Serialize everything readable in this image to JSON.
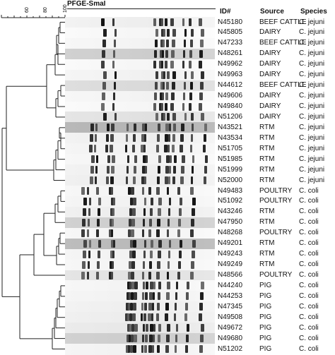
{
  "gel_title": "PFGE-SmaI",
  "scale_ticks": [
    "60",
    "80",
    "100"
  ],
  "headers": {
    "id": "ID#",
    "source": "Source",
    "species": "Species"
  },
  "rows": [
    {
      "id": "N45180",
      "source": "BEEF CATTLE",
      "species": "C. jejuni"
    },
    {
      "id": "N45805",
      "source": "DAIRY",
      "species": "C. jejuni"
    },
    {
      "id": "N47233",
      "source": "BEEF CATTLE",
      "species": "C. jejuni"
    },
    {
      "id": "N48261",
      "source": "DAIRY",
      "species": "C. jejuni"
    },
    {
      "id": "N49962",
      "source": "DAIRY",
      "species": "C. jejuni"
    },
    {
      "id": "N49963",
      "source": "DAIRY",
      "species": "C. jejuni"
    },
    {
      "id": "N44612",
      "source": "BEEF CATTLE",
      "species": "C. jejuni"
    },
    {
      "id": "N49606",
      "source": "DAIRY",
      "species": "C. jejuni"
    },
    {
      "id": "N49840",
      "source": "DAIRY",
      "species": "C. jejuni"
    },
    {
      "id": "N51206",
      "source": "DAIRY",
      "species": "C. jejuni"
    },
    {
      "id": "N43521",
      "source": "RTM",
      "species": "C. jejuni"
    },
    {
      "id": "N43534",
      "source": "RTM",
      "species": "C. jejuni"
    },
    {
      "id": "N51705",
      "source": "RTM",
      "species": "C. jejuni"
    },
    {
      "id": "N51985",
      "source": "RTM",
      "species": "C. jejuni"
    },
    {
      "id": "N51999",
      "source": "RTM",
      "species": "C. jejuni"
    },
    {
      "id": "N52000",
      "source": "RTM",
      "species": "C. jejuni"
    },
    {
      "id": "N49483",
      "source": "POULTRY",
      "species": "C. coli"
    },
    {
      "id": "N51092",
      "source": "POULTRY",
      "species": "C. coli"
    },
    {
      "id": "N43246",
      "source": "RTM",
      "species": "C. coli"
    },
    {
      "id": "N47950",
      "source": "RTM",
      "species": "C. coli"
    },
    {
      "id": "N48268",
      "source": "POULTRY",
      "species": "C. coli"
    },
    {
      "id": "N49201",
      "source": "RTM",
      "species": "C. coli"
    },
    {
      "id": "N49243",
      "source": "RTM",
      "species": "C. coli"
    },
    {
      "id": "N49249",
      "source": "RTM",
      "species": "C. coli"
    },
    {
      "id": "N48566",
      "source": "POULTRY",
      "species": "C. coli"
    },
    {
      "id": "N44240",
      "source": "PIG",
      "species": "C. coli"
    },
    {
      "id": "N44253",
      "source": "PIG",
      "species": "C. coli"
    },
    {
      "id": "N47345",
      "source": "PIG",
      "species": "C. coli"
    },
    {
      "id": "N49508",
      "source": "PIG",
      "species": "C. coli"
    },
    {
      "id": "N49672",
      "source": "PIG",
      "species": "C. coli"
    },
    {
      "id": "N49680",
      "source": "PIG",
      "species": "C. coli"
    },
    {
      "id": "N51202",
      "source": "PIG",
      "species": "C. coli"
    }
  ]
}
